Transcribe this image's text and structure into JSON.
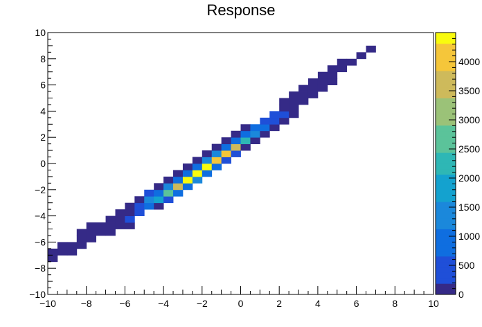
{
  "chart_data": {
    "type": "heatmap",
    "title": "Response",
    "xlabel": "",
    "ylabel": "",
    "xlim": [
      -10,
      10
    ],
    "ylim": [
      -10,
      10
    ],
    "zlim": [
      0,
      4500
    ],
    "bin_width": 0.5,
    "grid": false,
    "x_tick_labels": [
      "−10",
      "−8",
      "−6",
      "−4",
      "−2",
      "0",
      "2",
      "4",
      "6",
      "8",
      "10"
    ],
    "y_tick_labels": [
      "−10",
      "−8",
      "−6",
      "−4",
      "−2",
      "0",
      "2",
      "4",
      "6",
      "8",
      "10"
    ],
    "colorbar_tick_labels": [
      "0",
      "500",
      "1000",
      "1500",
      "2000",
      "2500",
      "3000",
      "3500",
      "4000"
    ],
    "colorbar_ticks": [
      0,
      500,
      1000,
      1500,
      2000,
      2500,
      3000,
      3500,
      4000
    ],
    "colorbar_colors": [
      "#352a87",
      "#1f4fd8",
      "#0f6ee0",
      "#1b88db",
      "#14a2cf",
      "#2eb7b5",
      "#5bc39a",
      "#9bc278",
      "#ceba5b",
      "#f5c63a",
      "#f9fb0e"
    ],
    "bins": [
      {
        "x": -10,
        "y": -7.5,
        "z": 100
      },
      {
        "x": -10,
        "y": -7,
        "z": 100
      },
      {
        "x": -9.5,
        "y": -7,
        "z": 100
      },
      {
        "x": -9.5,
        "y": -6.5,
        "z": 100
      },
      {
        "x": -9,
        "y": -7,
        "z": 100
      },
      {
        "x": -9,
        "y": -6.5,
        "z": 100
      },
      {
        "x": -8.5,
        "y": -6.5,
        "z": 100
      },
      {
        "x": -8.5,
        "y": -6,
        "z": 100
      },
      {
        "x": -8.5,
        "y": -5.5,
        "z": 100
      },
      {
        "x": -8,
        "y": -6,
        "z": 100
      },
      {
        "x": -8,
        "y": -5.5,
        "z": 100
      },
      {
        "x": -8,
        "y": -5,
        "z": 100
      },
      {
        "x": -7.5,
        "y": -5.5,
        "z": 100
      },
      {
        "x": -7.5,
        "y": -5,
        "z": 100
      },
      {
        "x": -7,
        "y": -5.5,
        "z": 100
      },
      {
        "x": -7,
        "y": -5,
        "z": 100
      },
      {
        "x": -7,
        "y": -4.5,
        "z": 100
      },
      {
        "x": -6.5,
        "y": -5,
        "z": 100
      },
      {
        "x": -6.5,
        "y": -4.5,
        "z": 200
      },
      {
        "x": -6.5,
        "y": -4,
        "z": 100
      },
      {
        "x": -6,
        "y": -5,
        "z": 100
      },
      {
        "x": -6,
        "y": -4.5,
        "z": 250
      },
      {
        "x": -6,
        "y": -4,
        "z": 200
      },
      {
        "x": -6,
        "y": -3.5,
        "z": 100
      },
      {
        "x": -5.5,
        "y": -4,
        "z": 400
      },
      {
        "x": -5.5,
        "y": -3.5,
        "z": 600
      },
      {
        "x": -5.5,
        "y": -3,
        "z": 150
      },
      {
        "x": -5,
        "y": -3.5,
        "z": 900
      },
      {
        "x": -5,
        "y": -3,
        "z": 1300
      },
      {
        "x": -5,
        "y": -2.5,
        "z": 400
      },
      {
        "x": -4.5,
        "y": -3.5,
        "z": 200
      },
      {
        "x": -4.5,
        "y": -3,
        "z": 1700
      },
      {
        "x": -4.5,
        "y": -2.5,
        "z": 1100
      },
      {
        "x": -4.5,
        "y": -2,
        "z": 150
      },
      {
        "x": -4,
        "y": -3,
        "z": 300
      },
      {
        "x": -4,
        "y": -2.5,
        "z": 2600
      },
      {
        "x": -4,
        "y": -2,
        "z": 1500
      },
      {
        "x": -4,
        "y": -1.5,
        "z": 200
      },
      {
        "x": -3.5,
        "y": -2.5,
        "z": 700
      },
      {
        "x": -3.5,
        "y": -2,
        "z": 3800
      },
      {
        "x": -3.5,
        "y": -1.5,
        "z": 1100
      },
      {
        "x": -3.5,
        "y": -1,
        "z": 100
      },
      {
        "x": -3,
        "y": -2,
        "z": 1000
      },
      {
        "x": -3,
        "y": -1.5,
        "z": 4300
      },
      {
        "x": -3,
        "y": -1,
        "z": 800
      },
      {
        "x": -3,
        "y": -0.5,
        "z": 100
      },
      {
        "x": -2.5,
        "y": -1.5,
        "z": 1200
      },
      {
        "x": -2.5,
        "y": -1,
        "z": 4500
      },
      {
        "x": -2.5,
        "y": -0.5,
        "z": 900
      },
      {
        "x": -2.5,
        "y": 0,
        "z": 100
      },
      {
        "x": -2,
        "y": -1,
        "z": 1000
      },
      {
        "x": -2,
        "y": -0.5,
        "z": 4400
      },
      {
        "x": -2,
        "y": 0,
        "z": 1200
      },
      {
        "x": -2,
        "y": 0.5,
        "z": 100
      },
      {
        "x": -1.5,
        "y": -0.5,
        "z": 700
      },
      {
        "x": -1.5,
        "y": 0,
        "z": 4200
      },
      {
        "x": -1.5,
        "y": 0.5,
        "z": 1300
      },
      {
        "x": -1.5,
        "y": 1,
        "z": 200
      },
      {
        "x": -1,
        "y": 0,
        "z": 400
      },
      {
        "x": -1,
        "y": 0.5,
        "z": 3900
      },
      {
        "x": -1,
        "y": 1,
        "z": 1100
      },
      {
        "x": -1,
        "y": 1.5,
        "z": 100
      },
      {
        "x": -0.5,
        "y": 0.5,
        "z": 300
      },
      {
        "x": -0.5,
        "y": 1,
        "z": 3400
      },
      {
        "x": -0.5,
        "y": 1.5,
        "z": 800
      },
      {
        "x": -0.5,
        "y": 2,
        "z": 100
      },
      {
        "x": 0,
        "y": 1,
        "z": 200
      },
      {
        "x": 0,
        "y": 1.5,
        "z": 2400
      },
      {
        "x": 0,
        "y": 2,
        "z": 900
      },
      {
        "x": 0,
        "y": 2.5,
        "z": 100
      },
      {
        "x": 0.5,
        "y": 1.5,
        "z": 200
      },
      {
        "x": 0.5,
        "y": 2,
        "z": 1400
      },
      {
        "x": 0.5,
        "y": 2.5,
        "z": 800
      },
      {
        "x": 1,
        "y": 2,
        "z": 100
      },
      {
        "x": 1,
        "y": 2.5,
        "z": 700
      },
      {
        "x": 1,
        "y": 3,
        "z": 600
      },
      {
        "x": 1.5,
        "y": 2.5,
        "z": 100
      },
      {
        "x": 1.5,
        "y": 3,
        "z": 400
      },
      {
        "x": 1.5,
        "y": 3.5,
        "z": 500
      },
      {
        "x": 2,
        "y": 3,
        "z": 100
      },
      {
        "x": 2,
        "y": 3.5,
        "z": 300
      },
      {
        "x": 2,
        "y": 4,
        "z": 100
      },
      {
        "x": 2,
        "y": 4.5,
        "z": 100
      },
      {
        "x": 2.5,
        "y": 3.5,
        "z": 100
      },
      {
        "x": 2.5,
        "y": 4,
        "z": 200
      },
      {
        "x": 2.5,
        "y": 4.5,
        "z": 100
      },
      {
        "x": 2.5,
        "y": 5,
        "z": 100
      },
      {
        "x": 3,
        "y": 4.5,
        "z": 100
      },
      {
        "x": 3,
        "y": 5,
        "z": 100
      },
      {
        "x": 3,
        "y": 5.5,
        "z": 100
      },
      {
        "x": 3.5,
        "y": 5,
        "z": 100
      },
      {
        "x": 3.5,
        "y": 5.5,
        "z": 100
      },
      {
        "x": 3.5,
        "y": 6,
        "z": 100
      },
      {
        "x": 4,
        "y": 5.5,
        "z": 100
      },
      {
        "x": 4,
        "y": 6,
        "z": 100
      },
      {
        "x": 4,
        "y": 6.5,
        "z": 100
      },
      {
        "x": 4.5,
        "y": 6,
        "z": 100
      },
      {
        "x": 4.5,
        "y": 6.5,
        "z": 100
      },
      {
        "x": 4.5,
        "y": 7,
        "z": 100
      },
      {
        "x": 5,
        "y": 7,
        "z": 100
      },
      {
        "x": 5,
        "y": 7.5,
        "z": 100
      },
      {
        "x": 5.5,
        "y": 7.5,
        "z": 100
      },
      {
        "x": 6,
        "y": 8,
        "z": 100
      },
      {
        "x": 6.5,
        "y": 8.5,
        "z": 100
      }
    ]
  }
}
